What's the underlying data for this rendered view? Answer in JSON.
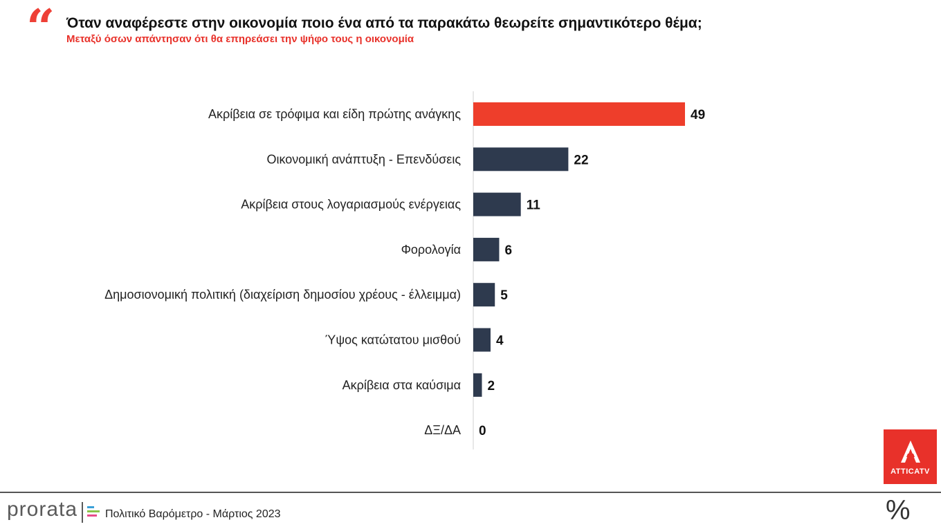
{
  "header": {
    "title": "Όταν αναφέρεστε στην οικονομία ποιο ένα από τα παρακάτω θεωρείτε σημαντικότερο θέμα;",
    "subtitle": "Μεταξύ όσων απάντησαν ότι θα επηρεάσει την ψήφο τους η οικονομία",
    "quote_icon": "quote-icon"
  },
  "chart_data": {
    "type": "bar",
    "orientation": "horizontal",
    "categories": [
      "Ακρίβεια σε τρόφιμα και είδη πρώτης ανάγκης",
      "Οικονομική ανάπτυξη - Επενδύσεις",
      "Ακρίβεια στους λογαριασμούς ενέργειας",
      "Φορολογία",
      "Δημοσιονομική πολιτική (διαχείριση δημοσίου χρέους - έλλειμμα)",
      "Ύψος κατώτατου μισθού",
      "Ακρίβεια στα καύσιμα",
      "ΔΞ/ΔΑ"
    ],
    "values": [
      49,
      22,
      11,
      6,
      5,
      4,
      2,
      0
    ],
    "colors": [
      "#ee3e2b",
      "#2e3a4e",
      "#2e3a4e",
      "#2e3a4e",
      "#2e3a4e",
      "#2e3a4e",
      "#2e3a4e",
      "#2e3a4e"
    ],
    "xlim": [
      0,
      50
    ],
    "grid": false,
    "legend": "none"
  },
  "footer": {
    "brand": "prorata",
    "text": "Πολιτικό Βαρόμετρο - Μάρτιος 2023",
    "logo_colors": [
      "#3aa0d8",
      "#8bc34a",
      "#e84b8a"
    ]
  },
  "tv_logo": {
    "label": "ATTICATV",
    "color": "#e8312a"
  },
  "corner_icon": {
    "glyph": "%",
    "name": "percent-icon"
  }
}
